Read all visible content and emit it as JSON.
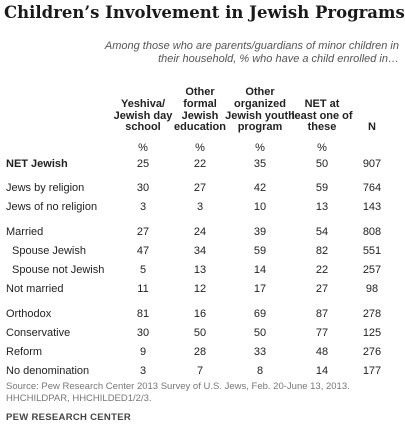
{
  "title": "Children’s Involvement in Jewish Programs",
  "subtitle": "Among those who are parents/guardians of minor children in their household, % who have a child enrolled in…",
  "chart_data": {
    "type": "table",
    "columns": [
      "Yeshiva/ Jewish day school",
      "Other formal Jewish education",
      "Other organized Jewish youth program",
      "NET at least one of these",
      "N"
    ],
    "unit_row": [
      "%",
      "%",
      "%",
      "%",
      ""
    ],
    "rows": [
      {
        "label": "NET Jewish",
        "values": [
          "25",
          "22",
          "35",
          "50",
          "907"
        ]
      },
      {
        "label": "Jews by religion",
        "values": [
          "30",
          "27",
          "42",
          "59",
          "764"
        ]
      },
      {
        "label": "Jews of no religion",
        "values": [
          "3",
          "3",
          "10",
          "13",
          "143"
        ]
      },
      {
        "label": "Married",
        "values": [
          "27",
          "24",
          "39",
          "54",
          "808"
        ]
      },
      {
        "label": "Spouse Jewish",
        "values": [
          "47",
          "34",
          "59",
          "82",
          "551"
        ]
      },
      {
        "label": "Spouse not Jewish",
        "values": [
          "5",
          "13",
          "14",
          "22",
          "257"
        ]
      },
      {
        "label": "Not married",
        "values": [
          "11",
          "12",
          "17",
          "27",
          "98"
        ]
      },
      {
        "label": "Orthodox",
        "values": [
          "81",
          "16",
          "69",
          "87",
          "278"
        ]
      },
      {
        "label": "Conservative",
        "values": [
          "30",
          "50",
          "50",
          "77",
          "125"
        ]
      },
      {
        "label": "Reform",
        "values": [
          "9",
          "28",
          "33",
          "48",
          "276"
        ]
      },
      {
        "label": "No denomination",
        "values": [
          "3",
          "7",
          "8",
          "14",
          "177"
        ]
      }
    ]
  },
  "source": "Source: Pew Research Center 2013 Survey of U.S. Jews, Feb. 20-June 13, 2013. HHCHILDPAR, HHCHILDED1/2/3.",
  "org": "PEW RESEARCH CENTER",
  "colors": {
    "title": "#1a1a1a",
    "subtitle": "#555555",
    "text": "#222222",
    "source": "#777777"
  }
}
